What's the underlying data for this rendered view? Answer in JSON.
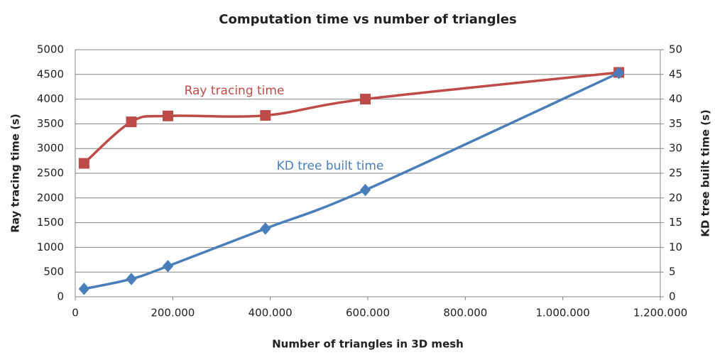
{
  "chart_data": {
    "type": "line",
    "title": "Computation time vs number of triangles",
    "x_label": "Number of triangles in 3D mesh",
    "y_label": "Ray tracing time (s)",
    "y2_label": "KD tree built time (s)",
    "x": [
      18000,
      115000,
      190000,
      390000,
      595000,
      1115000
    ],
    "xlim": [
      0,
      1200000
    ],
    "xticks": [
      0,
      {
        "value": 200000,
        "label": "200.000"
      },
      {
        "value": 400000,
        "label": "400.000"
      },
      {
        "value": 600000,
        "label": "600.000"
      },
      {
        "value": 800000,
        "label": "800.000"
      },
      {
        "value": 1000000,
        "label": "1.000.000"
      },
      {
        "value": 1200000,
        "label": "1.200.000"
      }
    ],
    "ylim": [
      0,
      5000
    ],
    "yticks": [
      0,
      500,
      1000,
      1500,
      2000,
      2500,
      3000,
      3500,
      4000,
      4500,
      5000
    ],
    "y2lim": [
      0,
      50
    ],
    "y2ticks": [
      0,
      5,
      10,
      15,
      20,
      25,
      30,
      35,
      40,
      45,
      50
    ],
    "grid": true,
    "series": [
      {
        "name": "Ray tracing time",
        "color": "#be4b48",
        "marker": "square",
        "values": [
          2700,
          3540,
          3660,
          3670,
          4000,
          4540
        ]
      },
      {
        "name": "KD tree built time",
        "color": "#4a7ebb",
        "marker": "diamond",
        "axis": "y2",
        "values": [
          1.6,
          3.6,
          6.2,
          13.8,
          21.6,
          45.3
        ]
      }
    ]
  }
}
